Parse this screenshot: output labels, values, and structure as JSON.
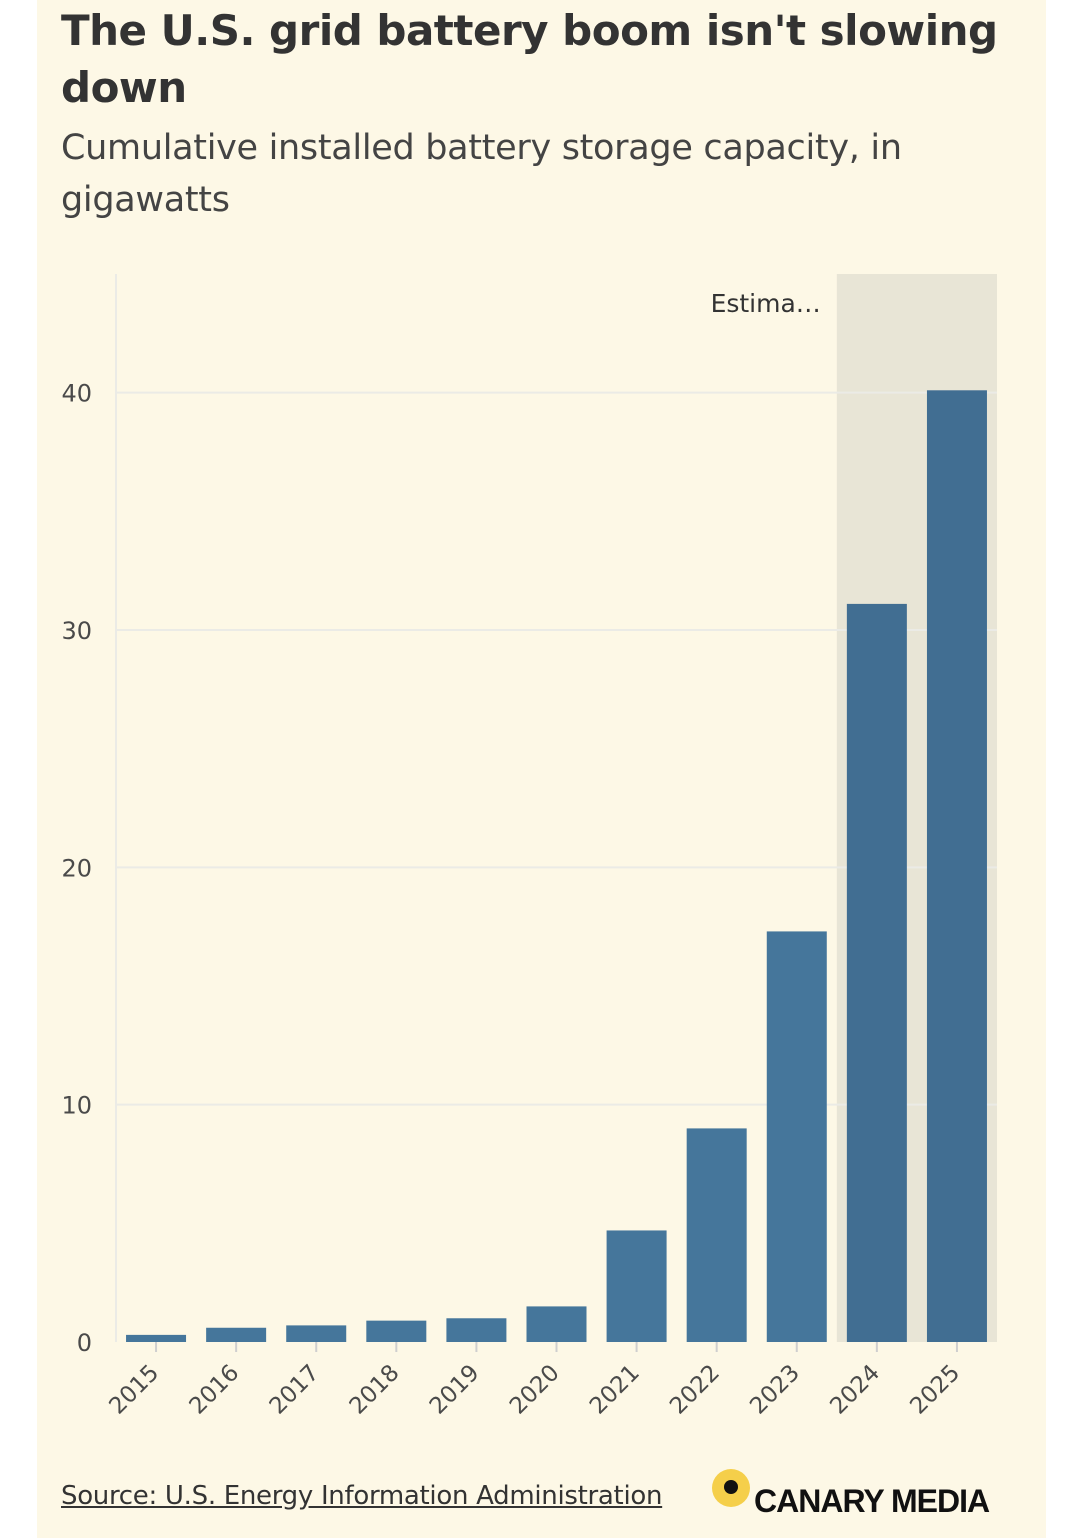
{
  "header": {
    "title": "The U.S. grid battery boom isn't slowing down",
    "subtitle": "Cumulative installed battery storage capacity, in gigawatts"
  },
  "footer": {
    "source": "Source: U.S. Energy Information Administration",
    "logo_text": "CANARY MEDIA"
  },
  "colors": {
    "bar": "#45769b",
    "bar_estimate": "#416e92",
    "estimate_band": "#e8e5d6",
    "grid": "#ebebe6",
    "background": "#fdf8e6",
    "logo_dot": "#f5cf4a"
  },
  "chart_data": {
    "type": "bar",
    "title": "The U.S. grid battery boom isn't slowing down",
    "subtitle": "Cumulative installed battery storage capacity, in gigawatts",
    "categories": [
      "2015",
      "2016",
      "2017",
      "2018",
      "2019",
      "2020",
      "2021",
      "2022",
      "2023",
      "2024",
      "2025"
    ],
    "values": [
      0.3,
      0.6,
      0.7,
      0.9,
      1.0,
      1.5,
      4.7,
      9.0,
      17.3,
      31.1,
      40.1
    ],
    "ylim": [
      0,
      45
    ],
    "yticks": [
      0,
      10,
      20,
      30,
      40
    ],
    "grid": "horizontal",
    "estimate_region": {
      "label": "Estima…",
      "categories": [
        "2024",
        "2025"
      ]
    }
  }
}
